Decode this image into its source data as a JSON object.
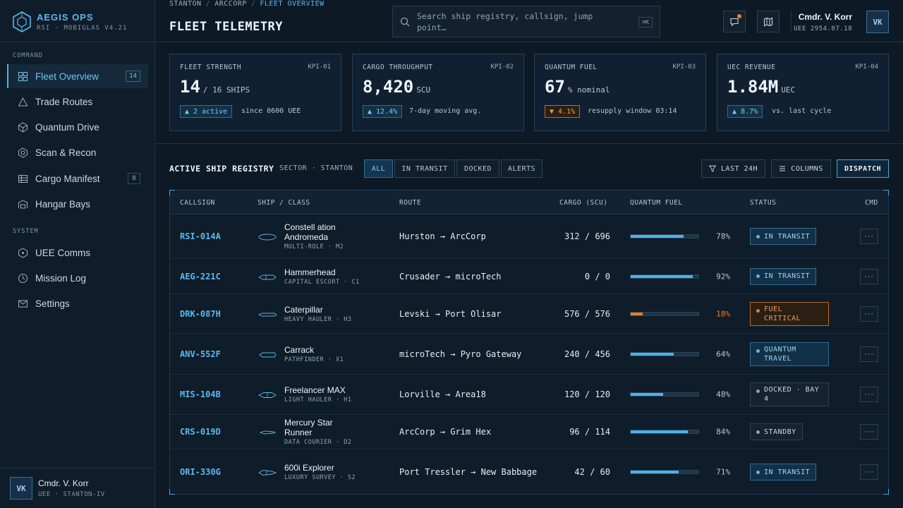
{
  "brand": {
    "name": "AEGIS OPS",
    "sub": "RSI · MOBIGLAS V4.21"
  },
  "sidebar": {
    "section_command": "COMMAND",
    "section_system": "SYSTEM",
    "items": [
      {
        "label": "Fleet Overview",
        "icon": "grid-icon",
        "badge": "14",
        "active": true
      },
      {
        "label": "Trade Routes",
        "icon": "triangle-icon"
      },
      {
        "label": "Quantum Drive",
        "icon": "cube-icon"
      },
      {
        "label": "Scan & Recon",
        "icon": "target-icon"
      },
      {
        "label": "Cargo Manifest",
        "icon": "manifest-icon",
        "badge": "8"
      },
      {
        "label": "Hangar Bays",
        "icon": "hangar-icon"
      },
      {
        "label": "UEE Comms",
        "icon": "comms-icon"
      },
      {
        "label": "Mission Log",
        "icon": "clock-icon"
      },
      {
        "label": "Settings",
        "icon": "mail-icon"
      }
    ],
    "user": {
      "initials": "VK",
      "name": "Cmdr. V. Korr",
      "meta": "UEE · STANTON-IV"
    }
  },
  "header": {
    "breadcrumb": [
      "STANTON",
      "ARCCORP",
      "FLEET OVERVIEW"
    ],
    "title": "FLEET TELEMETRY",
    "search_placeholder": "Search ship registry, callsign, jump point…",
    "search_shortcut": "⌘K",
    "user": {
      "name": "Cmdr. V. Korr",
      "meta": "UEE 2954.07.18",
      "initials": "VK"
    }
  },
  "kpis": [
    {
      "label": "FLEET STRENGTH",
      "id": "KPI-01",
      "value": "14",
      "unit": "/ 16 SHIPS",
      "delta": "▲ 2 active",
      "note": "since 0600 UEE",
      "trend": "up"
    },
    {
      "label": "CARGO THROUGHPUT",
      "id": "KPI-02",
      "value": "8,420",
      "unit": "SCU",
      "delta": "▲ 12.4%",
      "note": "7-day moving avg.",
      "trend": "up"
    },
    {
      "label": "QUANTUM FUEL",
      "id": "KPI-03",
      "value": "67",
      "unit": "% nominal",
      "delta": "▼ 4.1%",
      "note": "resupply window 03:14",
      "trend": "down"
    },
    {
      "label": "UEC REVENUE",
      "id": "KPI-04",
      "value": "1.84M",
      "unit": "UEC",
      "delta": "▲ 8.7%",
      "note": "vs. last cycle",
      "trend": "up"
    }
  ],
  "registry": {
    "title": "ACTIVE SHIP REGISTRY",
    "sector": "SECTOR · STANTON",
    "filters": [
      "ALL",
      "IN TRANSIT",
      "DOCKED",
      "ALERTS"
    ],
    "active_filter": "ALL",
    "time_range": "LAST 24H",
    "columns_label": "COLUMNS",
    "dispatch_label": "DISPATCH",
    "headers": [
      "CALLSIGN",
      "SHIP / CLASS",
      "ROUTE",
      "CARGO (SCU)",
      "QUANTUM FUEL",
      "STATUS",
      "CMD"
    ],
    "rows": [
      {
        "callsign": "RSI-014A",
        "ship": "Constell ation Andromeda",
        "class": "MULTI-ROLE · M2",
        "route": "Hurston → ArcCorp",
        "cargo": "312 / 696",
        "fuel": 78,
        "fuel_label": "78%",
        "status": "IN TRANSIT",
        "status_kind": "transit"
      },
      {
        "callsign": "AEG-221C",
        "ship": "Hammerhead",
        "class": "CAPITAL ESCORT · C1",
        "route": "Crusader → microTech",
        "cargo": "0 / 0",
        "fuel": 92,
        "fuel_label": "92%",
        "status": "IN TRANSIT",
        "status_kind": "transit"
      },
      {
        "callsign": "DRK-087H",
        "ship": "Caterpillar",
        "class": "HEAVY HAULER · H3",
        "route": "Levski → Port Olisar",
        "cargo": "576 / 576",
        "fuel": 18,
        "fuel_label": "18%",
        "status": "FUEL CRITICAL",
        "status_kind": "critical"
      },
      {
        "callsign": "ANV-552F",
        "ship": "Carrack",
        "class": "PATHFINDER · X1",
        "route": "microTech → Pyro Gateway",
        "cargo": "240 / 456",
        "fuel": 64,
        "fuel_label": "64%",
        "status": "QUANTUM TRAVEL",
        "status_kind": "transit"
      },
      {
        "callsign": "MIS-104B",
        "ship": "Freelancer MAX",
        "class": "LIGHT HAULER · H1",
        "route": "Lorville → Area18",
        "cargo": "120 / 120",
        "fuel": 48,
        "fuel_label": "48%",
        "status": "DOCKED · BAY 4",
        "status_kind": "neutral"
      },
      {
        "callsign": "CRS-019D",
        "ship": "Mercury Star Runner",
        "class": "DATA COURIER · D2",
        "route": "ArcCorp → Grim Hex",
        "cargo": "96 / 114",
        "fuel": 84,
        "fuel_label": "84%",
        "status": "STANDBY",
        "status_kind": "neutral"
      },
      {
        "callsign": "ORI-330G",
        "ship": "600i Explorer",
        "class": "LUXURY SURVEY · S2",
        "route": "Port Tressler → New Babbage",
        "cargo": "42 / 60",
        "fuel": 71,
        "fuel_label": "71%",
        "status": "IN TRANSIT",
        "status_kind": "transit"
      }
    ],
    "cmd_label": "···"
  },
  "colors": {
    "accent": "#4cb2e8",
    "warning": "#f07a24",
    "background": "#0d1a26"
  }
}
